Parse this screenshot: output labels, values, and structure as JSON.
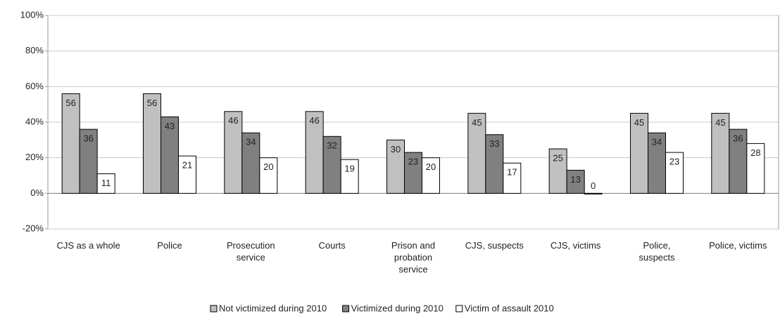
{
  "chart_data": {
    "type": "bar",
    "categories": [
      "CJS as a whole",
      "Police",
      "Prosecution service",
      "Courts",
      "Prison and probation service",
      "CJS, suspects",
      "CJS, victims",
      "Police, suspects",
      "Police, victims"
    ],
    "series": [
      {
        "name": "Not victimized during 2010",
        "color": "#c0c0c0",
        "values": [
          56,
          56,
          46,
          46,
          30,
          45,
          25,
          45,
          45
        ]
      },
      {
        "name": "Victimized during 2010",
        "color": "#808080",
        "values": [
          36,
          43,
          34,
          32,
          23,
          33,
          13,
          34,
          36
        ]
      },
      {
        "name": "Victim of assault 2010",
        "color": "#ffffff",
        "values": [
          11,
          21,
          20,
          19,
          20,
          17,
          0,
          23,
          28
        ]
      }
    ],
    "ylim": [
      -20,
      100
    ],
    "yticks": [
      {
        "value": -20,
        "label": "-20%"
      },
      {
        "value": 0,
        "label": "0%"
      },
      {
        "value": 20,
        "label": "20%"
      },
      {
        "value": 40,
        "label": "40%"
      },
      {
        "value": 60,
        "label": "60%"
      },
      {
        "value": 80,
        "label": "80%"
      },
      {
        "value": 100,
        "label": "100%"
      }
    ],
    "grid": true
  }
}
